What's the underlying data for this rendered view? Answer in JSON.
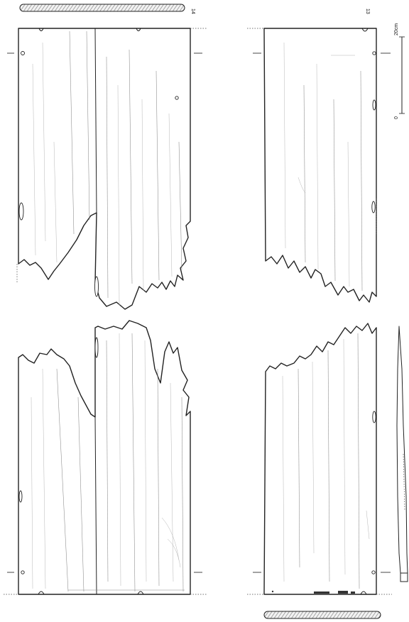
{
  "figure": {
    "plank_left_number": "14",
    "plank_right_number": "13",
    "scale_bar": {
      "min_label": "0",
      "max_label": "20cm",
      "min_value": 0,
      "max_value": 20,
      "unit": "cm"
    }
  }
}
